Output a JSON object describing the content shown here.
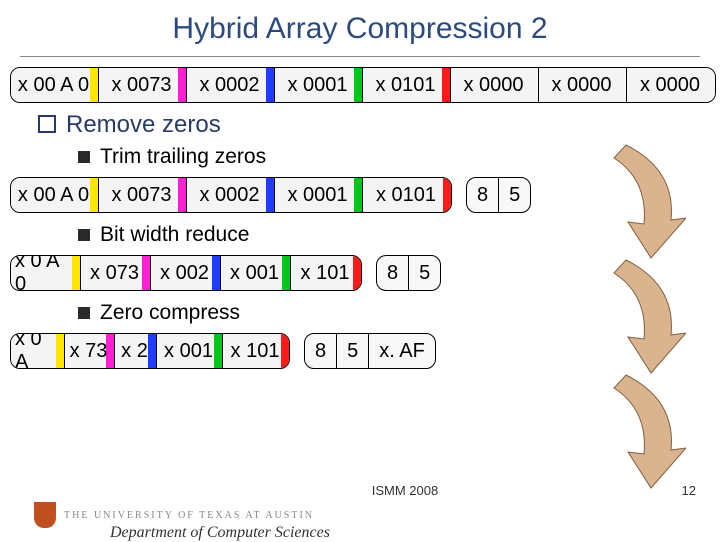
{
  "title": "Hybrid Array Compression 2",
  "bullets": {
    "remove": "Remove zeros",
    "trim": "Trim trailing zeros",
    "bitwidth": "Bit width reduce",
    "zerocomp": "Zero compress"
  },
  "colors": {
    "yellow": "#ffe600",
    "magenta": "#ff1fd6",
    "blue": "#1f3cff",
    "green": "#00c818",
    "red": "#ff1a1a",
    "bg": "#f4f4f4",
    "arrow_fill": "#d9b48f",
    "arrow_stroke": "#806040"
  },
  "sizes": {
    "row1_cell_w": 88,
    "row2_cell_w": 88,
    "row3_cell_w": 70,
    "row4_widths": [
      54,
      50,
      42,
      66,
      66
    ]
  },
  "row1": [
    {
      "t": "x 00 A 0",
      "c": "yellow"
    },
    {
      "t": "x 0073",
      "c": "magenta"
    },
    {
      "t": "x 0002",
      "c": "blue"
    },
    {
      "t": "x 0001",
      "c": "green"
    },
    {
      "t": "x 0101",
      "c": "red"
    },
    {
      "t": "x 0000",
      "c": null
    },
    {
      "t": "x 0000",
      "c": null
    },
    {
      "t": "x 0000",
      "c": null
    }
  ],
  "row2": {
    "cells": [
      {
        "t": "x 00 A 0",
        "c": "yellow"
      },
      {
        "t": "x 0073",
        "c": "magenta"
      },
      {
        "t": "x 0002",
        "c": "blue"
      },
      {
        "t": "x 0001",
        "c": "green"
      },
      {
        "t": "x 0101",
        "c": "red"
      }
    ],
    "meta": [
      "8",
      "5"
    ]
  },
  "row3": {
    "cells": [
      {
        "t": "x 0 A 0",
        "c": "yellow"
      },
      {
        "t": "x 073",
        "c": "magenta"
      },
      {
        "t": "x 002",
        "c": "blue"
      },
      {
        "t": "x 001",
        "c": "green"
      },
      {
        "t": "x 101",
        "c": "red"
      }
    ],
    "meta": [
      "8",
      "5"
    ]
  },
  "row4": {
    "cells": [
      {
        "t": "x 0 A",
        "c": "yellow"
      },
      {
        "t": "x 73",
        "c": "magenta"
      },
      {
        "t": "x 2",
        "c": "blue"
      },
      {
        "t": "x 001",
        "c": "green"
      },
      {
        "t": "x 101",
        "c": "red"
      }
    ],
    "meta": [
      "8",
      "5",
      "x. AF"
    ]
  },
  "footer": {
    "conf": "ISMM 2008",
    "page": "12",
    "ut": "THE UNIVERSITY OF TEXAS AT AUSTIN",
    "dept": "Department of Computer Sciences"
  }
}
